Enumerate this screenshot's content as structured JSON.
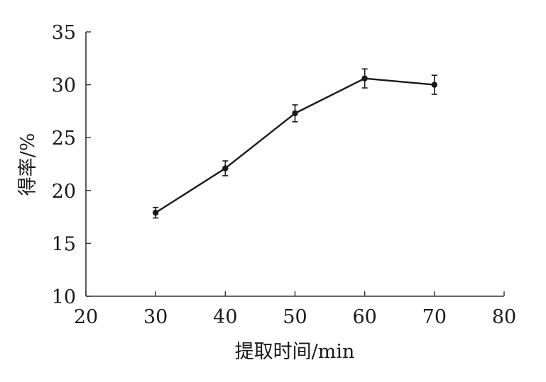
{
  "chart_data": {
    "type": "line",
    "x": [
      30,
      40,
      50,
      60,
      70
    ],
    "series": [
      {
        "values": [
          17.9,
          22.1,
          27.3,
          30.6,
          30.0
        ],
        "errors": [
          0.5,
          0.7,
          0.8,
          0.9,
          0.9
        ]
      }
    ],
    "xlabel": "提取时间/min",
    "ylabel": "得率/%",
    "xlim": [
      20,
      80
    ],
    "ylim": [
      10,
      35
    ],
    "xticks": [
      20,
      30,
      40,
      50,
      60,
      70,
      80
    ],
    "yticks": [
      10,
      15,
      20,
      25,
      30,
      35
    ],
    "grid": false,
    "line_color": "#1a1a1a"
  }
}
